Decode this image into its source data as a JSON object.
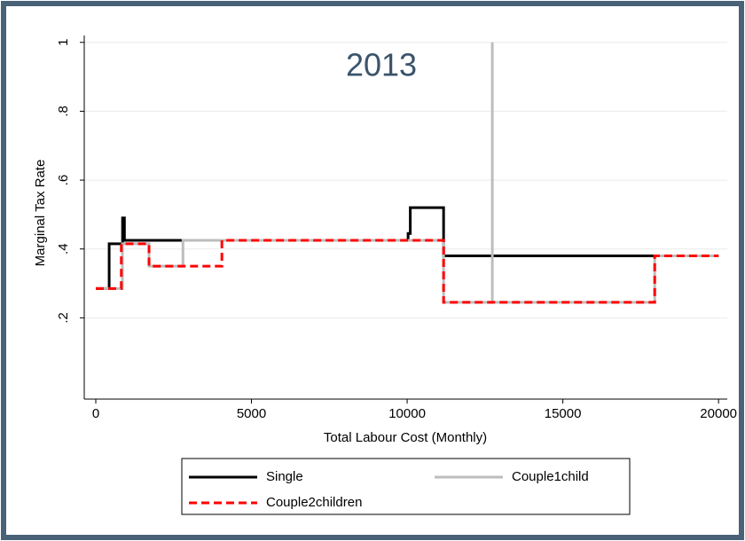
{
  "chart_data": {
    "type": "line",
    "annotation": "2013",
    "xlabel": "Total Labour Cost (Monthly)",
    "ylabel": "Marginal Tax Rate",
    "xlim": [
      -370,
      20280
    ],
    "ylim": [
      -0.036,
      1.02
    ],
    "xticks": [
      0,
      5000,
      10000,
      15000,
      20000
    ],
    "yticks": [
      {
        "value": 0.2,
        "label": ".2"
      },
      {
        "value": 0.4,
        "label": ".4"
      },
      {
        "value": 0.6,
        "label": ".6"
      },
      {
        "value": 0.8,
        "label": ".8"
      },
      1
    ],
    "grid": true,
    "legend": "bottom",
    "series": [
      {
        "name": "Single",
        "color": "#000000",
        "dash": "solid",
        "x": [
          0,
          430,
          430,
          860,
          860,
          920,
          920,
          2700,
          10030,
          10030,
          10100,
          10100,
          11170,
          11170,
          20000
        ],
        "values": [
          0.285,
          0.285,
          0.415,
          0.415,
          0.49,
          0.49,
          0.425,
          0.425,
          0.425,
          0.445,
          0.445,
          0.52,
          0.52,
          0.38,
          0.38
        ]
      },
      {
        "name": "Couple1child",
        "color": "#bdbdbd",
        "dash": "solid",
        "x": [
          0,
          855,
          855,
          1710,
          1710,
          2800,
          2800,
          11170,
          11170,
          12735,
          12735,
          12735,
          17950,
          17950,
          20000
        ],
        "values": [
          0.285,
          0.285,
          0.415,
          0.415,
          0.35,
          0.35,
          0.425,
          0.425,
          0.245,
          0.245,
          1.0,
          0.245,
          0.245,
          0.38,
          0.38
        ]
      },
      {
        "name": "Couple2children",
        "color": "#ff0000",
        "dash": "dashed",
        "x": [
          0,
          820,
          820,
          1710,
          1710,
          4050,
          4050,
          11170,
          11170,
          17950,
          17950,
          20000
        ],
        "values": [
          0.285,
          0.285,
          0.415,
          0.415,
          0.35,
          0.35,
          0.425,
          0.425,
          0.245,
          0.245,
          0.38,
          0.38
        ]
      }
    ]
  }
}
